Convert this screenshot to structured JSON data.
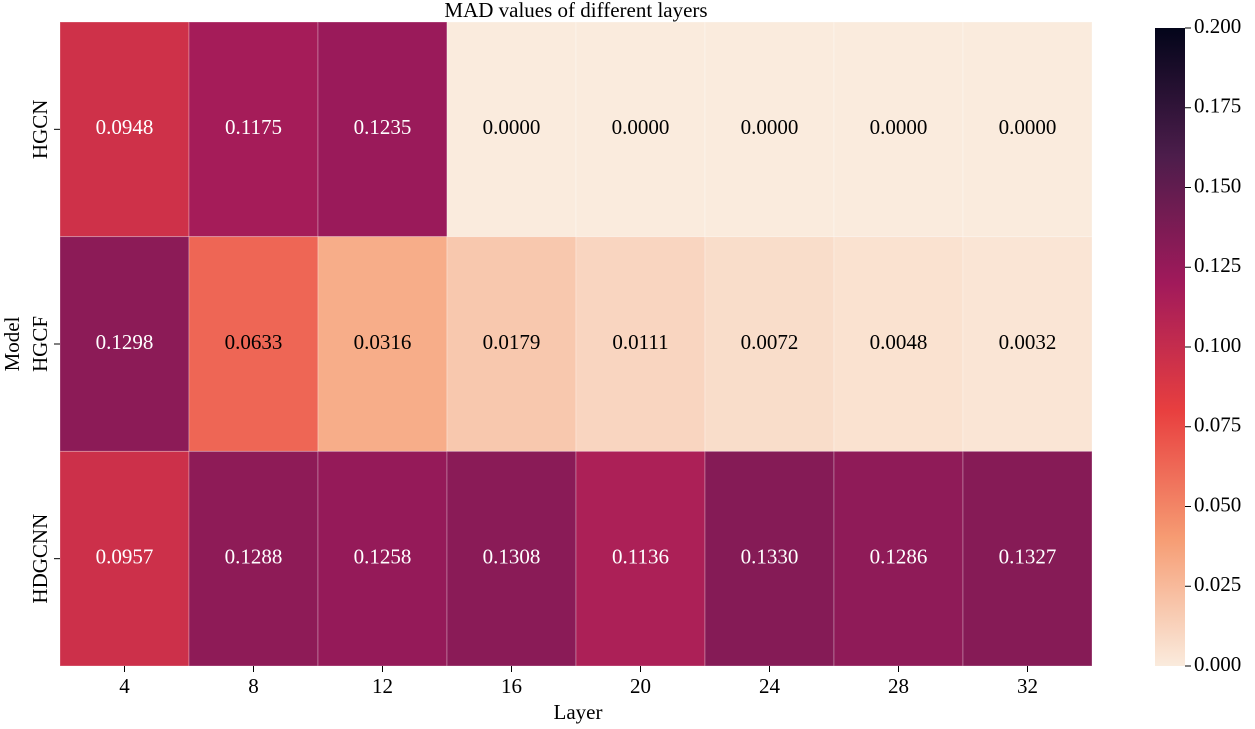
{
  "chart_data": {
    "type": "heatmap",
    "title": "MAD values of different layers",
    "x_label": "Layer",
    "y_label": "Model",
    "x_categories": [
      "4",
      "8",
      "12",
      "16",
      "20",
      "24",
      "28",
      "32"
    ],
    "y_categories": [
      "HGCN",
      "HGCF",
      "HDGCNN"
    ],
    "values": [
      [
        0.0948,
        0.1175,
        0.1235,
        0,
        0,
        0,
        0,
        0
      ],
      [
        0.1298,
        0.0633,
        0.0316,
        0.0179,
        0.0111,
        0.0072,
        0.0048,
        0.0032
      ],
      [
        0.0957,
        0.1288,
        0.1258,
        0.1308,
        0.1136,
        0.133,
        0.1286,
        0.1327
      ]
    ],
    "value_labels": [
      [
        "0.0948",
        "0.1175",
        "0.1235",
        "0.0000",
        "0.0000",
        "0.0000",
        "0.0000",
        "0.0000"
      ],
      [
        "0.1298",
        "0.0633",
        "0.0316",
        "0.0179",
        "0.0111",
        "0.0072",
        "0.0048",
        "0.0032"
      ],
      [
        "0.0957",
        "0.1288",
        "0.1258",
        "0.1308",
        "0.1136",
        "0.1330",
        "0.1286",
        "0.1327"
      ]
    ],
    "colormap": [
      "#faebdd",
      "#f69c73",
      "#e83f3f",
      "#a11a5b",
      "#4c1d4b",
      "#03051a"
    ],
    "clim": [
      0,
      0.2
    ],
    "cticks": [
      {
        "value": 0,
        "label": "0.000"
      },
      {
        "value": 0.025,
        "label": "0.025"
      },
      {
        "value": 0.05,
        "label": "0.050"
      },
      {
        "value": 0.075,
        "label": "0.075"
      },
      {
        "value": 0.1,
        "label": "0.100"
      },
      {
        "value": 0.125,
        "label": "0.125"
      },
      {
        "value": 0.15,
        "label": "0.150"
      },
      {
        "value": 0.175,
        "label": "0.175"
      },
      {
        "value": 0.2,
        "label": "0.200"
      }
    ]
  }
}
